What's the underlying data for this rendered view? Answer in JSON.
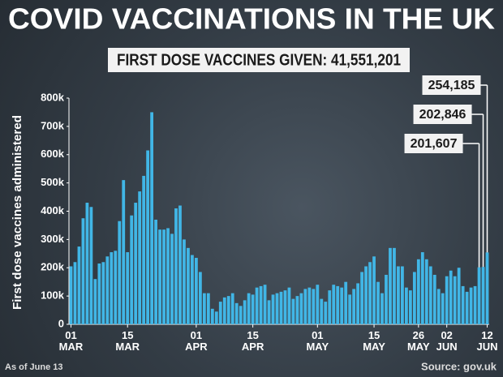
{
  "chart_data": {
    "type": "bar",
    "title": "COVID VACCINATIONS IN THE UK",
    "subtitle": "FIRST DOSE VACCINES GIVEN: 41,551,201",
    "y_label": "First dose vaccines administered",
    "footnote": "As of June 13",
    "source": "Source: gov.uk",
    "color": "#41b6e6",
    "categories": [
      "01\nMAR",
      null,
      null,
      null,
      null,
      null,
      null,
      null,
      null,
      null,
      null,
      null,
      null,
      null,
      "15\nMAR",
      null,
      null,
      null,
      null,
      null,
      null,
      null,
      null,
      null,
      null,
      null,
      null,
      null,
      null,
      null,
      null,
      "01\nAPR",
      null,
      null,
      null,
      null,
      null,
      null,
      null,
      null,
      null,
      null,
      null,
      null,
      null,
      "15\nAPR",
      null,
      null,
      null,
      null,
      null,
      null,
      null,
      null,
      null,
      null,
      null,
      null,
      null,
      null,
      null,
      "01\nMAY",
      null,
      null,
      null,
      null,
      null,
      null,
      null,
      null,
      null,
      null,
      null,
      null,
      null,
      "15\nMAY",
      null,
      null,
      null,
      null,
      null,
      null,
      null,
      null,
      null,
      null,
      "26\nMAY",
      null,
      null,
      null,
      null,
      null,
      null,
      "02\nJUN",
      null,
      null,
      null,
      null,
      null,
      null,
      null,
      null,
      null,
      "12\nJUN"
    ],
    "values": [
      205000,
      220000,
      275000,
      375000,
      430000,
      415000,
      160000,
      215000,
      220000,
      240000,
      255000,
      260000,
      365000,
      510000,
      255000,
      385000,
      430000,
      470000,
      525000,
      615000,
      750000,
      370000,
      335000,
      335000,
      340000,
      320000,
      410000,
      420000,
      300000,
      270000,
      245000,
      235000,
      185000,
      110000,
      110000,
      55000,
      45000,
      80000,
      95000,
      100000,
      110000,
      75000,
      65000,
      85000,
      110000,
      105000,
      130000,
      135000,
      140000,
      85000,
      105000,
      110000,
      115000,
      120000,
      130000,
      90000,
      100000,
      110000,
      125000,
      130000,
      125000,
      140000,
      90000,
      80000,
      120000,
      140000,
      135000,
      130000,
      150000,
      105000,
      125000,
      145000,
      185000,
      205000,
      220000,
      240000,
      150000,
      110000,
      175000,
      270000,
      270000,
      205000,
      205000,
      130000,
      120000,
      185000,
      230000,
      255000,
      230000,
      205000,
      175000,
      125000,
      110000,
      170000,
      190000,
      170000,
      200000,
      135000,
      115000,
      130000,
      135000,
      201607,
      202846,
      254185
    ],
    "value_labels": [
      null,
      null,
      null,
      null,
      null,
      null,
      null,
      null,
      null,
      null,
      null,
      null,
      null,
      null,
      null,
      null,
      null,
      null,
      null,
      null,
      null,
      null,
      null,
      null,
      null,
      null,
      null,
      null,
      null,
      null,
      null,
      null,
      null,
      null,
      null,
      null,
      null,
      null,
      null,
      null,
      null,
      null,
      null,
      null,
      null,
      null,
      null,
      null,
      null,
      null,
      null,
      null,
      null,
      null,
      null,
      null,
      null,
      null,
      null,
      null,
      null,
      null,
      null,
      null,
      null,
      null,
      null,
      null,
      null,
      null,
      null,
      null,
      null,
      null,
      null,
      null,
      null,
      null,
      null,
      null,
      null,
      null,
      null,
      null,
      null,
      null,
      null,
      null,
      null,
      null,
      null,
      null,
      null,
      null,
      null,
      null,
      null,
      null,
      null,
      null,
      null,
      "201,607",
      "202,846",
      "254,185"
    ],
    "ylim": [
      0,
      800000
    ],
    "yticks": [
      0,
      {
        "value": 100000,
        "label": "100k"
      },
      {
        "value": 200000,
        "label": "200k"
      },
      {
        "value": 300000,
        "label": "300k"
      },
      {
        "value": 400000,
        "label": "400k"
      },
      {
        "value": 500000,
        "label": "500k"
      },
      {
        "value": 600000,
        "label": "600k"
      },
      {
        "value": 700000,
        "label": "700k"
      },
      {
        "value": 800000,
        "label": "800k"
      }
    ],
    "grid": false
  }
}
